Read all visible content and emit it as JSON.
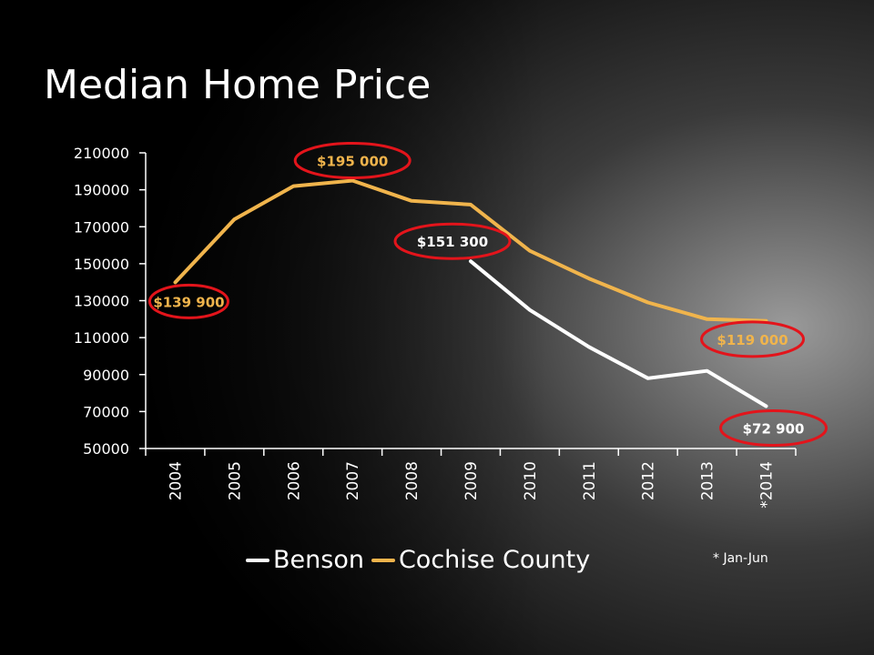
{
  "colors": {
    "benson": "#ffffff",
    "cochise": "#f0b44c",
    "callout_ring": "#e3141b"
  },
  "chart_data": {
    "type": "line",
    "title": "Median Home Price",
    "categories": [
      "2004",
      "2005",
      "2006",
      "2007",
      "2008",
      "2009",
      "2010",
      "2011",
      "2012",
      "2013",
      "*2014"
    ],
    "series": [
      {
        "name": "Benson",
        "values": [
          null,
          null,
          null,
          null,
          null,
          151300,
          125000,
          105000,
          88000,
          92000,
          72900
        ]
      },
      {
        "name": "Cochise County",
        "values": [
          139900,
          174000,
          192000,
          195000,
          184000,
          182000,
          157000,
          142000,
          129000,
          120000,
          119000
        ]
      }
    ],
    "ylim": [
      50000,
      210000
    ],
    "yticks": [
      50000,
      70000,
      90000,
      110000,
      130000,
      150000,
      170000,
      190000,
      210000
    ],
    "ytick_labels": [
      "50000",
      "70000",
      "90000",
      "110000",
      "130000",
      "150000",
      "170000",
      "190000",
      "210000"
    ],
    "annotations": [
      {
        "text": "$139 900",
        "series": "Cochise County",
        "category": "2004"
      },
      {
        "text": "$195 000",
        "series": "Cochise County",
        "category": "2007"
      },
      {
        "text": "$151 300",
        "series": "Benson",
        "category": "2009"
      },
      {
        "text": "$119 000",
        "series": "Cochise County",
        "category": "*2014"
      },
      {
        "text": "$72 900",
        "series": "Benson",
        "category": "*2014"
      }
    ],
    "legend_position": "bottom",
    "footnote": "* Jan-Jun",
    "grid": false
  }
}
